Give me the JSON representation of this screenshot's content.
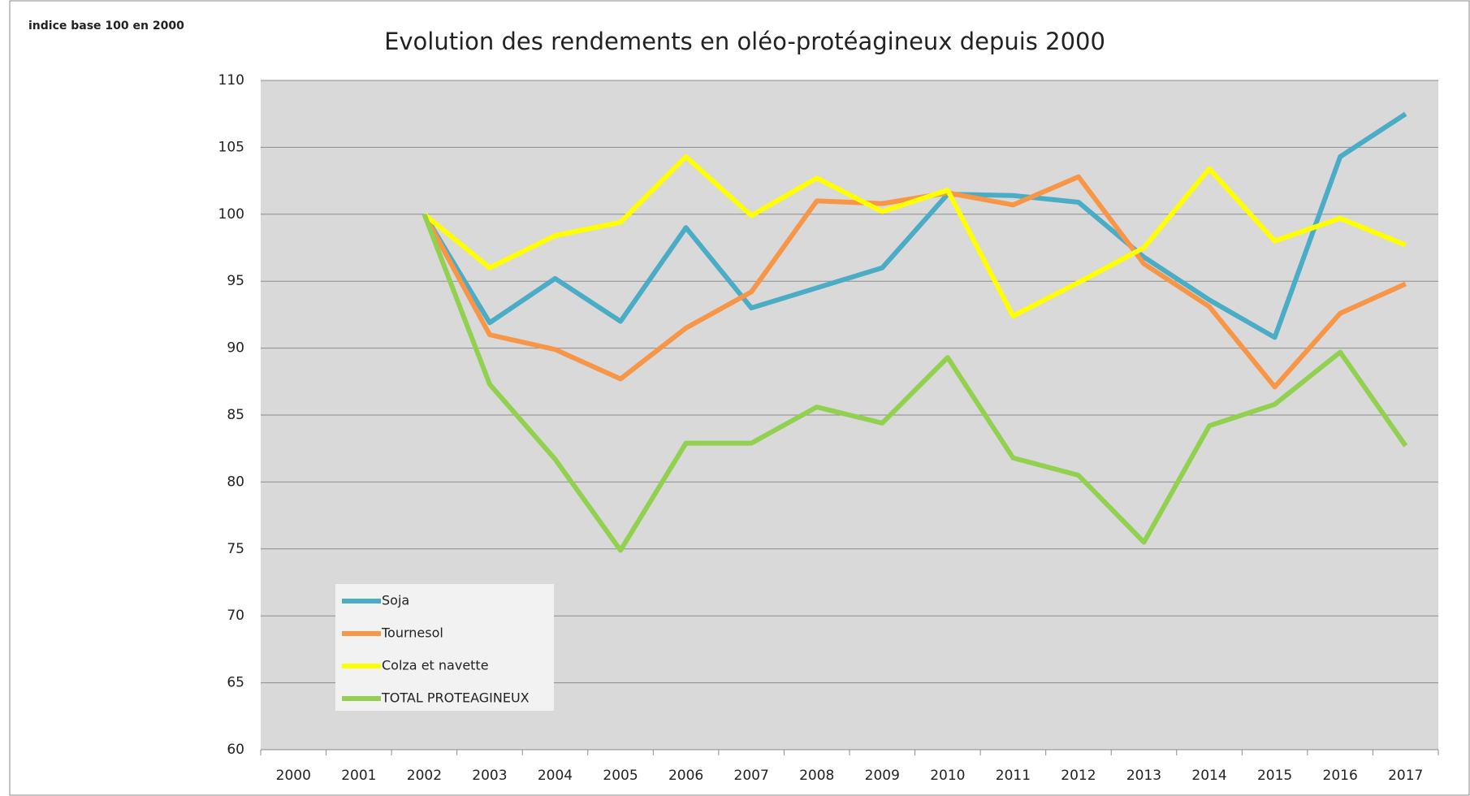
{
  "chart_data": {
    "type": "line",
    "title": "Evolution des rendements en oléo-protéagineux depuis 2000",
    "ylabel": "indice base 100 en 2000",
    "categories": [
      "2000",
      "2001",
      "2002",
      "2003",
      "2004",
      "2005",
      "2006",
      "2007",
      "2008",
      "2009",
      "2010",
      "2011",
      "2012",
      "2013",
      "2014",
      "2015",
      "2016",
      "2017"
    ],
    "series": [
      {
        "name": "Soja",
        "color": "#4bacc6",
        "values": [
          null,
          null,
          100,
          91.9,
          95.2,
          92.0,
          99.0,
          93.0,
          94.5,
          96.0,
          101.5,
          101.4,
          100.9,
          96.8,
          93.6,
          90.8,
          104.3,
          107.5
        ]
      },
      {
        "name": "Tournesol",
        "color": "#f79646",
        "values": [
          null,
          null,
          100,
          91.0,
          89.9,
          87.7,
          91.5,
          94.2,
          101.0,
          100.8,
          101.6,
          100.7,
          102.8,
          96.3,
          93.1,
          87.1,
          92.6,
          94.8
        ]
      },
      {
        "name": "Colza et navette",
        "color": "#ffff00",
        "values": [
          null,
          null,
          100,
          96.0,
          98.4,
          99.4,
          104.3,
          99.9,
          102.7,
          100.2,
          101.8,
          92.4,
          94.9,
          97.5,
          103.4,
          98.0,
          99.7,
          97.7
        ]
      },
      {
        "name": "TOTAL PROTEAGINEUX",
        "color": "#92d050",
        "values": [
          null,
          null,
          100,
          87.3,
          81.7,
          74.9,
          82.9,
          82.9,
          85.6,
          84.4,
          89.3,
          81.8,
          80.5,
          75.5,
          84.2,
          85.8,
          89.7,
          82.7
        ]
      }
    ],
    "ylim": [
      60,
      110
    ],
    "yticks": [
      60,
      65,
      70,
      75,
      80,
      85,
      90,
      95,
      100,
      105,
      110
    ],
    "grid": true,
    "legend": "lower left"
  }
}
